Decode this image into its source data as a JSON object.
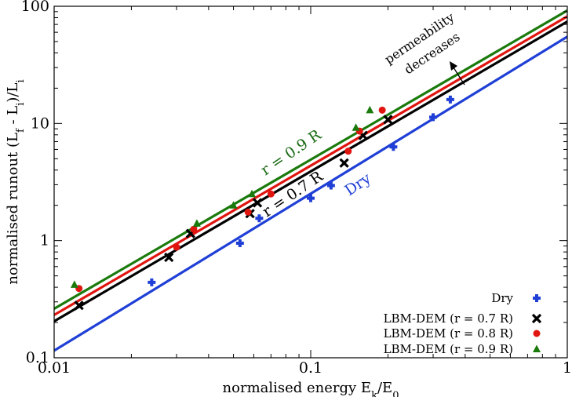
{
  "chart_data": {
    "type": "scatter",
    "xlabel": "normalised energy E_k/E_0",
    "ylabel": "normalised runout (L_f - L_i)/L_i",
    "xscale": "log",
    "yscale": "log",
    "xlim": [
      0.01,
      1
    ],
    "ylim": [
      0.1,
      100
    ],
    "xticks": [
      "0.01",
      "0.1",
      "1"
    ],
    "yticks": [
      "0.1",
      "1",
      "10",
      "100"
    ],
    "legend_position": "bottom-right",
    "series": [
      {
        "name": "Dry",
        "marker": "plus",
        "color": "#1f3fd6",
        "points": [
          [
            0.024,
            0.44
          ],
          [
            0.053,
            0.95
          ],
          [
            0.063,
            1.55
          ],
          [
            0.1,
            2.3
          ],
          [
            0.12,
            2.95
          ],
          [
            0.21,
            6.3
          ],
          [
            0.3,
            11.3
          ],
          [
            0.35,
            16
          ]
        ],
        "fit_line": [
          [
            0.01,
            0.115
          ],
          [
            1,
            55
          ]
        ]
      },
      {
        "name": "LBM-DEM (r = 0.7 R)",
        "marker": "cross",
        "color": "#000000",
        "points": [
          [
            0.0125,
            0.28
          ],
          [
            0.028,
            0.72
          ],
          [
            0.034,
            1.15
          ],
          [
            0.058,
            1.7
          ],
          [
            0.062,
            2.1
          ],
          [
            0.135,
            4.6
          ],
          [
            0.16,
            7.9
          ],
          [
            0.2,
            10.8
          ]
        ],
        "fit_line": [
          [
            0.01,
            0.205
          ],
          [
            1,
            74
          ]
        ]
      },
      {
        "name": "LBM-DEM (r = 0.8 R)",
        "marker": "circle",
        "color": "#e0150f",
        "points": [
          [
            0.0125,
            0.39
          ],
          [
            0.03,
            0.88
          ],
          [
            0.035,
            1.25
          ],
          [
            0.057,
            1.75
          ],
          [
            0.07,
            2.5
          ],
          [
            0.14,
            5.8
          ],
          [
            0.155,
            8.6
          ],
          [
            0.19,
            13
          ]
        ],
        "fit_line": [
          [
            0.01,
            0.232
          ],
          [
            1,
            82
          ]
        ]
      },
      {
        "name": "LBM-DEM (r = 0.9 R)",
        "marker": "triangle",
        "color": "#1a7a0c",
        "points": [
          [
            0.012,
            0.42
          ],
          [
            0.036,
            1.4
          ],
          [
            0.05,
            2.0
          ],
          [
            0.059,
            2.5
          ],
          [
            0.15,
            9.2
          ],
          [
            0.17,
            13
          ]
        ],
        "fit_line": [
          [
            0.01,
            0.262
          ],
          [
            1,
            92
          ]
        ]
      }
    ],
    "annotations": [
      {
        "text": "r = 0.9 R",
        "color": "#1a6b14"
      },
      {
        "text": "r = 0.7 R",
        "color": "#000000"
      },
      {
        "text": "Dry",
        "color": "#1f3fd6"
      },
      {
        "text": "permeability",
        "color": "#000000"
      },
      {
        "text": "decreases",
        "color": "#000000"
      }
    ]
  }
}
